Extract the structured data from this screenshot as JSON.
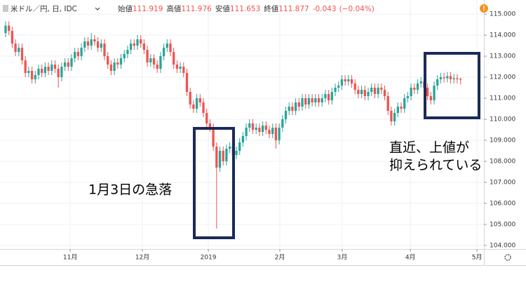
{
  "chart_data": {
    "type": "candlestick",
    "legend": {
      "symbol": "米ドル／円, 日, IDC",
      "items": [
        {
          "label": "始値",
          "value": 111.919
        },
        {
          "label": "高値",
          "value": 111.976
        },
        {
          "label": "安値",
          "value": 111.653
        },
        {
          "label": "終値",
          "value": 111.877
        }
      ],
      "change": -0.043,
      "change_pct_label": "(−0.04%)"
    },
    "annotations": [
      "1月3日の急落",
      "直近、上値が",
      "抑えられている"
    ],
    "up_color": "#26a69a",
    "down_color": "#ef5350",
    "grid": true,
    "xlim": [
      -1.7,
      145.1
    ],
    "xticks": [
      {
        "value": 19.6,
        "label": "11月"
      },
      {
        "value": 41.5,
        "label": "12月"
      },
      {
        "value": 61.5,
        "label": "2019"
      },
      {
        "value": 83.2,
        "label": "2月"
      },
      {
        "value": 102.1,
        "label": "3月"
      },
      {
        "value": 122.8,
        "label": "4月"
      },
      {
        "value": 143,
        "label": "5月"
      }
    ],
    "ylim": [
      103.83,
      115.67
    ],
    "yticks": [
      {
        "value": 104,
        "label": "104.000"
      },
      {
        "value": 105,
        "label": "105.000"
      },
      {
        "value": 106,
        "label": "106.000"
      },
      {
        "value": 107,
        "label": "107.000"
      },
      {
        "value": 108,
        "label": "108.000"
      },
      {
        "value": 109,
        "label": "109.000"
      },
      {
        "value": 110,
        "label": "110.000"
      },
      {
        "value": 111,
        "label": "111.000"
      },
      {
        "value": 112,
        "label": "112.000"
      },
      {
        "value": 113,
        "label": "113.000"
      },
      {
        "value": 114,
        "label": "114.000"
      },
      {
        "value": 115,
        "label": "115.000"
      }
    ],
    "open": [
      114.1,
      114.45,
      114.2,
      113.6,
      113.2,
      113.4,
      112.8,
      112.2,
      112.3,
      111.9,
      112.1,
      112.4,
      112.2,
      112.5,
      112.3,
      112.6,
      112.4,
      112.0,
      112.5,
      112.7,
      112.5,
      112.9,
      113.2,
      113.0,
      113.4,
      113.7,
      113.5,
      113.8,
      113.7,
      113.4,
      113.6,
      113.0,
      112.6,
      112.3,
      112.7,
      112.6,
      112.9,
      113.1,
      113.3,
      113.6,
      113.5,
      113.8,
      113.6,
      113.3,
      112.7,
      112.9,
      112.6,
      112.4,
      113.0,
      113.4,
      113.6,
      113.2,
      112.6,
      112.4,
      112.5,
      112.2,
      111.3,
      110.7,
      110.5,
      111.0,
      110.8,
      110.3,
      109.8,
      109.6,
      108.7,
      107.7,
      108.5,
      108.0,
      108.6,
      108.7,
      108.3,
      108.5,
      108.9,
      109.2,
      109.6,
      109.8,
      109.5,
      109.6,
      109.4,
      109.7,
      109.5,
      109.3,
      109.6,
      109.0,
      109.6,
      110.0,
      110.4,
      110.6,
      110.4,
      110.8,
      110.6,
      111.0,
      110.7,
      111.0,
      110.8,
      111.0,
      110.8,
      111.0,
      111.2,
      110.9,
      111.3,
      111.5,
      111.6,
      111.9,
      111.8,
      111.9,
      111.7,
      111.4,
      111.2,
      111.4,
      111.1,
      111.3,
      111.5,
      111.2,
      111.5,
      111.4,
      111.1,
      110.4,
      109.9,
      110.3,
      110.6,
      110.5,
      111.0,
      111.1,
      111.5,
      111.4,
      111.7,
      111.8,
      111.5,
      111.1,
      110.9,
      111.6,
      111.9,
      112.0,
      111.95,
      112.05,
      111.9,
      111.95,
      111.919
    ],
    "high": [
      114.65,
      114.65,
      114.4,
      113.8,
      113.6,
      113.6,
      113.0,
      112.5,
      112.5,
      112.3,
      112.6,
      112.6,
      112.7,
      112.7,
      112.8,
      112.8,
      112.6,
      112.7,
      112.9,
      112.9,
      113.1,
      113.4,
      113.4,
      113.6,
      113.9,
      113.9,
      114.1,
      114.0,
      113.9,
      113.8,
      113.8,
      113.2,
      112.8,
      112.9,
      112.9,
      113.1,
      113.3,
      113.5,
      113.8,
      113.8,
      114.0,
      114.0,
      113.8,
      113.5,
      113.1,
      113.1,
      112.8,
      113.2,
      113.6,
      113.8,
      113.8,
      113.4,
      112.8,
      112.7,
      112.7,
      112.4,
      111.5,
      110.9,
      111.2,
      111.2,
      111.0,
      110.5,
      110.0,
      109.8,
      108.9,
      108.7,
      108.7,
      108.8,
      108.9,
      108.9,
      108.7,
      109.1,
      109.4,
      109.8,
      110.0,
      110.0,
      109.8,
      109.8,
      109.9,
      109.9,
      109.7,
      109.8,
      109.8,
      109.8,
      110.2,
      110.6,
      110.8,
      110.8,
      111.0,
      111.0,
      111.2,
      111.2,
      111.2,
      111.2,
      111.2,
      111.2,
      111.2,
      111.4,
      111.4,
      111.5,
      111.7,
      111.8,
      112.1,
      112.1,
      112.1,
      112.1,
      111.9,
      111.6,
      111.6,
      111.6,
      111.5,
      111.7,
      111.7,
      111.7,
      111.7,
      111.6,
      111.3,
      110.6,
      110.5,
      110.8,
      110.8,
      111.2,
      111.3,
      111.7,
      111.7,
      111.9,
      112.0,
      112.0,
      111.7,
      111.3,
      111.8,
      112.1,
      112.2,
      112.2,
      112.25,
      112.25,
      112.15,
      112.15,
      111.976
    ],
    "low": [
      113.9,
      114.0,
      113.4,
      113.0,
      113.0,
      112.6,
      112.0,
      112.0,
      111.7,
      111.7,
      111.9,
      112.0,
      112.0,
      112.1,
      112.1,
      112.2,
      111.5,
      111.8,
      112.3,
      112.3,
      112.3,
      112.7,
      112.8,
      112.8,
      113.2,
      113.3,
      113.3,
      113.5,
      113.2,
      113.2,
      112.8,
      112.4,
      112.1,
      112.1,
      112.4,
      112.4,
      112.7,
      112.9,
      113.1,
      113.3,
      113.3,
      113.4,
      113.1,
      112.5,
      112.5,
      112.4,
      112.2,
      112.2,
      112.8,
      113.2,
      113.0,
      112.4,
      112.2,
      112.2,
      112.0,
      111.1,
      110.5,
      110.3,
      110.3,
      110.6,
      110.1,
      109.6,
      109.4,
      108.5,
      104.8,
      107.5,
      107.8,
      107.8,
      108.4,
      108.1,
      108.1,
      108.3,
      108.7,
      109.0,
      109.4,
      109.3,
      109.3,
      109.2,
      109.2,
      109.3,
      109.1,
      109.1,
      108.6,
      108.8,
      109.4,
      109.8,
      110.2,
      110.2,
      110.2,
      110.4,
      110.4,
      110.5,
      110.5,
      110.6,
      110.6,
      110.6,
      110.6,
      110.8,
      110.7,
      110.7,
      111.1,
      111.3,
      111.4,
      111.6,
      111.6,
      111.5,
      111.2,
      111.0,
      111.0,
      110.9,
      110.9,
      111.1,
      111.0,
      111.0,
      111.2,
      110.9,
      110.2,
      109.7,
      109.7,
      110.1,
      110.3,
      110.3,
      110.8,
      110.9,
      111.2,
      111.2,
      111.5,
      111.3,
      110.9,
      110.7,
      110.7,
      111.4,
      111.7,
      111.75,
      111.75,
      111.7,
      111.7,
      111.7,
      111.653
    ],
    "close": [
      114.45,
      114.2,
      113.6,
      113.2,
      113.4,
      112.8,
      112.2,
      112.3,
      111.9,
      112.1,
      112.4,
      112.2,
      112.5,
      112.3,
      112.6,
      112.4,
      112.0,
      112.5,
      112.7,
      112.5,
      112.9,
      113.2,
      113.0,
      113.4,
      113.7,
      113.5,
      113.8,
      113.7,
      113.4,
      113.6,
      113.0,
      112.6,
      112.3,
      112.7,
      112.6,
      112.9,
      113.1,
      113.3,
      113.6,
      113.5,
      113.8,
      113.6,
      113.3,
      112.7,
      112.9,
      112.6,
      112.4,
      113.0,
      113.4,
      113.6,
      113.2,
      112.6,
      112.4,
      112.5,
      112.2,
      111.3,
      110.7,
      110.5,
      111.0,
      110.8,
      110.3,
      109.8,
      109.6,
      108.7,
      107.7,
      108.5,
      108.0,
      108.6,
      108.7,
      108.3,
      108.5,
      108.9,
      109.2,
      109.6,
      109.8,
      109.5,
      109.6,
      109.4,
      109.7,
      109.5,
      109.3,
      109.6,
      109.0,
      109.6,
      110.0,
      110.4,
      110.6,
      110.4,
      110.8,
      110.6,
      111.0,
      110.7,
      111.0,
      110.8,
      111.0,
      110.8,
      111.0,
      111.2,
      110.9,
      111.3,
      111.5,
      111.6,
      111.9,
      111.8,
      111.9,
      111.7,
      111.4,
      111.2,
      111.4,
      111.1,
      111.3,
      111.5,
      111.2,
      111.5,
      111.4,
      111.1,
      110.4,
      109.9,
      110.3,
      110.6,
      110.5,
      111.0,
      111.1,
      111.5,
      111.4,
      111.7,
      111.8,
      111.5,
      111.1,
      110.9,
      111.6,
      111.9,
      112.0,
      111.95,
      112.05,
      111.9,
      111.95,
      111.9,
      111.877
    ]
  }
}
